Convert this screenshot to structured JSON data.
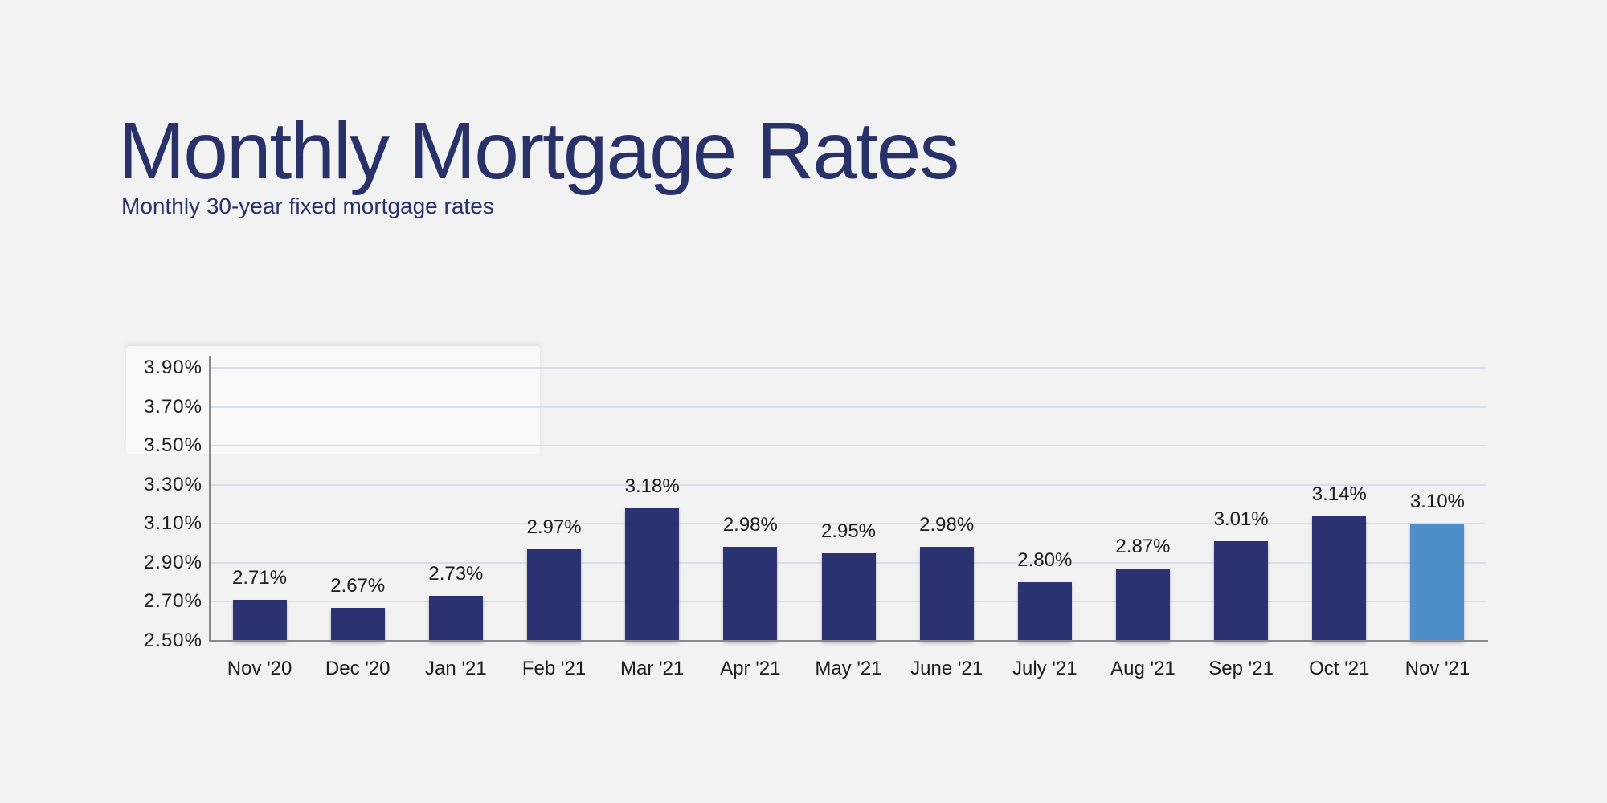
{
  "page": {
    "title": "Monthly Mortgage Rates",
    "subtitle": "Monthly 30-year fixed mortgage rates"
  },
  "colors": {
    "background": "#f2f2f3",
    "title_text": "#293169",
    "bar_primary": "#2b3271",
    "bar_highlight": "#4e8fca",
    "gridline": "#d7dfee",
    "axis_line": "#87898c",
    "label_text": "#1c1c1c"
  },
  "chart_data": {
    "type": "bar",
    "title": "Monthly Mortgage Rates",
    "subtitle": "Monthly 30-year fixed mortgage rates",
    "categories": [
      "Nov '20",
      "Dec '20",
      "Jan '21",
      "Feb '21",
      "Mar '21",
      "Apr '21",
      "May '21",
      "June '21",
      "July '21",
      "Aug '21",
      "Sep '21",
      "Oct '21",
      "Nov '21"
    ],
    "values": [
      2.71,
      2.67,
      2.73,
      2.97,
      3.18,
      2.98,
      2.95,
      2.98,
      2.8,
      2.87,
      3.01,
      3.14,
      3.1
    ],
    "value_labels": [
      "2.71%",
      "2.67%",
      "2.73%",
      "2.97%",
      "3.18%",
      "2.98%",
      "2.95%",
      "2.98%",
      "2.80%",
      "2.87%",
      "3.01%",
      "3.14%",
      "3.10%"
    ],
    "highlight_index": 12,
    "y_ticks": [
      "3.90%",
      "3.70%",
      "3.50%",
      "3.30%",
      "3.10%",
      "2.90%",
      "2.70%",
      "2.50%"
    ],
    "y_tick_values": [
      3.9,
      3.7,
      3.5,
      3.3,
      3.1,
      2.9,
      2.7,
      2.5
    ],
    "ylim": [
      2.5,
      3.9
    ],
    "xlabel": "",
    "ylabel": "",
    "grid": true,
    "legend": "none"
  }
}
